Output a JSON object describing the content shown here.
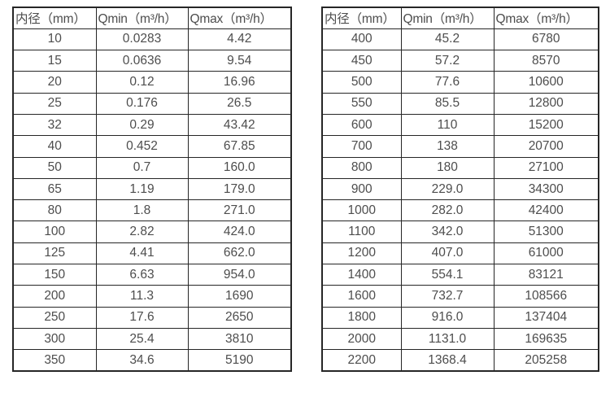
{
  "colors": {
    "background": "#ffffff",
    "table_border": "#262626",
    "text": "#4d4d4d"
  },
  "tables": [
    {
      "name": "flow-spec-table-small-diameters",
      "headers": [
        "内径（mm）",
        "Qmin（m³/h）",
        "Qmax（m³/h）"
      ],
      "rows": [
        [
          "10",
          "0.0283",
          "4.42"
        ],
        [
          "15",
          "0.0636",
          "9.54"
        ],
        [
          "20",
          "0.12",
          "16.96"
        ],
        [
          "25",
          "0.176",
          "26.5"
        ],
        [
          "32",
          "0.29",
          "43.42"
        ],
        [
          "40",
          "0.452",
          "67.85"
        ],
        [
          "50",
          "0.7",
          "160.0"
        ],
        [
          "65",
          "1.19",
          "179.0"
        ],
        [
          "80",
          "1.8",
          "271.0"
        ],
        [
          "100",
          "2.82",
          "424.0"
        ],
        [
          "125",
          "4.41",
          "662.0"
        ],
        [
          "150",
          "6.63",
          "954.0"
        ],
        [
          "200",
          "11.3",
          "1690"
        ],
        [
          "250",
          "17.6",
          "2650"
        ],
        [
          "300",
          "25.4",
          "3810"
        ],
        [
          "350",
          "34.6",
          "5190"
        ]
      ]
    },
    {
      "name": "flow-spec-table-large-diameters",
      "headers": [
        "内径（mm）",
        "Qmin（m³/h）",
        "Qmax（m³/h）"
      ],
      "rows": [
        [
          "400",
          "45.2",
          "6780"
        ],
        [
          "450",
          "57.2",
          "8570"
        ],
        [
          "500",
          "77.6",
          "10600"
        ],
        [
          "550",
          "85.5",
          "12800"
        ],
        [
          "600",
          "110",
          "15200"
        ],
        [
          "700",
          "138",
          "20700"
        ],
        [
          "800",
          "180",
          "27100"
        ],
        [
          "900",
          "229.0",
          "34300"
        ],
        [
          "1000",
          "282.0",
          "42400"
        ],
        [
          "1100",
          "342.0",
          "51300"
        ],
        [
          "1200",
          "407.0",
          "61000"
        ],
        [
          "1400",
          "554.1",
          "83121"
        ],
        [
          "1600",
          "732.7",
          "108566"
        ],
        [
          "1800",
          "916.0",
          "137404"
        ],
        [
          "2000",
          "1131.0",
          "169635"
        ],
        [
          "2200",
          "1368.4",
          "205258"
        ]
      ]
    }
  ]
}
